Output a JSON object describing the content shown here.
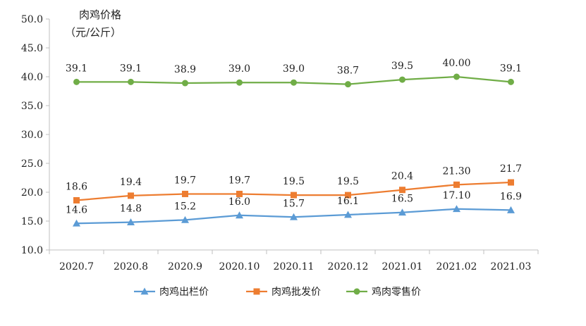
{
  "chart_data": {
    "type": "line",
    "title": "肉鸡价格",
    "ylabel": "（元/公斤）",
    "xlabel": "",
    "categories": [
      "2020.7",
      "2020.8",
      "2020.9",
      "2020.10",
      "2020.11",
      "2020.12",
      "2021.01",
      "2021.02",
      "2021.03"
    ],
    "ylim": [
      10,
      50
    ],
    "yticks": [
      "10.0",
      "15.0",
      "20.0",
      "25.0",
      "30.0",
      "35.0",
      "40.0",
      "45.0",
      "50.0"
    ],
    "grid": false,
    "legend_position": "bottom",
    "series": [
      {
        "name": "肉鸡出栏价",
        "color": "#5B9BD5",
        "marker": "triangle",
        "values": [
          14.6,
          14.8,
          15.2,
          16.0,
          15.7,
          16.1,
          16.5,
          17.1,
          16.9
        ],
        "labels": [
          "14.6",
          "14.8",
          "15.2",
          "16.0",
          "15.7",
          "16.1",
          "16.5",
          "17.10",
          "16.9"
        ]
      },
      {
        "name": "肉鸡批发价",
        "color": "#ED7D31",
        "marker": "square",
        "values": [
          18.6,
          19.4,
          19.7,
          19.7,
          19.5,
          19.5,
          20.4,
          21.3,
          21.7
        ],
        "labels": [
          "18.6",
          "19.4",
          "19.7",
          "19.7",
          "19.5",
          "19.5",
          "20.4",
          "21.30",
          "21.7"
        ]
      },
      {
        "name": "鸡肉零售价",
        "color": "#70AD47",
        "marker": "circle",
        "values": [
          39.1,
          39.1,
          38.9,
          39.0,
          39.0,
          38.7,
          39.5,
          40.0,
          39.1
        ],
        "labels": [
          "39.1",
          "39.1",
          "38.9",
          "39.0",
          "39.0",
          "38.7",
          "39.5",
          "40.00",
          "39.1"
        ]
      }
    ]
  }
}
